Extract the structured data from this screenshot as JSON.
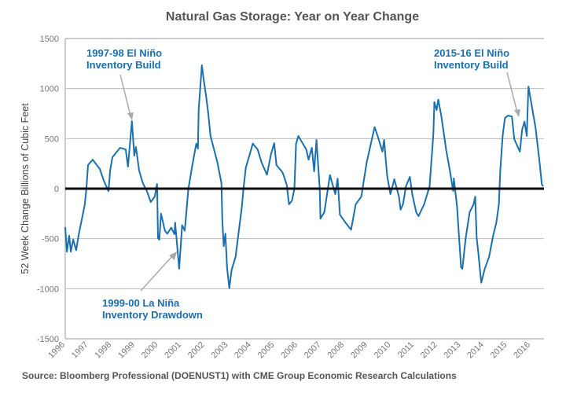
{
  "chart_data": {
    "type": "line",
    "title": "Natural Gas Storage: Year on Year Change",
    "xlabel": "",
    "ylabel": "52 Week Change Billions of Cubic Feet",
    "ylim": [
      -1500,
      1500
    ],
    "xlim": [
      1996,
      2016.6
    ],
    "yticks": [
      -1500,
      -1000,
      -500,
      0,
      500,
      1000,
      1500
    ],
    "xticks": [
      "1996",
      "1997",
      "1998",
      "1999",
      "2000",
      "2001",
      "2002",
      "2003",
      "2004",
      "2005",
      "2006",
      "2007",
      "2008",
      "2009",
      "2010",
      "2011",
      "2012",
      "2013",
      "2014",
      "2015",
      "2016"
    ],
    "grid": true,
    "line_color": "#1a6faf",
    "annotations": [
      {
        "lines": [
          "1997-98 El Niño",
          "Inventory Build"
        ],
        "points_to": [
          1998.87,
          675
        ]
      },
      {
        "lines": [
          "2015-16 El Niño",
          "Inventory Build"
        ],
        "points_to": [
          2015.5,
          700
        ]
      },
      {
        "lines": [
          "1999-00 La Niña",
          "Inventory Drawdown"
        ],
        "points_to": [
          2000.8,
          -640
        ]
      }
    ],
    "source": "Source: Bloomberg Professional (DOENUST1) with CME Group Economic Research Calculations",
    "series": [
      {
        "name": "52 Week Change",
        "x": [
          1996.0,
          1996.07,
          1996.17,
          1996.24,
          1996.34,
          1996.47,
          1996.57,
          1996.84,
          1996.91,
          1996.98,
          1997.18,
          1997.49,
          1997.66,
          1997.86,
          1997.93,
          1998.03,
          1998.36,
          1998.6,
          1998.7,
          1998.87,
          1998.97,
          1999.04,
          1999.18,
          1999.34,
          1999.51,
          1999.68,
          1999.85,
          1999.95,
          1999.99,
          2000.05,
          2000.12,
          2000.29,
          2000.39,
          2000.56,
          2000.7,
          2000.73,
          2000.9,
          2001.03,
          2001.14,
          2001.24,
          2001.3,
          2001.47,
          2001.64,
          2001.71,
          2001.74,
          2001.88,
          2001.95,
          2002.05,
          2002.15,
          2002.25,
          2002.55,
          2002.72,
          2002.76,
          2002.82,
          2002.89,
          2002.96,
          2003.06,
          2003.16,
          2003.33,
          2003.5,
          2003.6,
          2003.67,
          2003.77,
          2004.07,
          2004.28,
          2004.45,
          2004.68,
          2004.85,
          2004.99,
          2005.09,
          2005.29,
          2005.36,
          2005.53,
          2005.63,
          2005.76,
          2005.86,
          2005.93,
          2006.03,
          2006.37,
          2006.47,
          2006.61,
          2006.71,
          2006.81,
          2006.95,
          2006.98,
          2007.15,
          2007.39,
          2007.62,
          2007.72,
          2007.82,
          2008.06,
          2008.3,
          2008.5,
          2008.74,
          2008.97,
          2009.31,
          2009.41,
          2009.65,
          2009.72,
          2009.85,
          2009.99,
          2010.16,
          2010.36,
          2010.43,
          2010.53,
          2010.66,
          2010.83,
          2010.93,
          2011.1,
          2011.2,
          2011.44,
          2011.68,
          2011.84,
          2011.88,
          2011.98,
          2012.05,
          2012.18,
          2012.39,
          2012.55,
          2012.69,
          2012.72,
          2012.86,
          2013.03,
          2013.09,
          2013.23,
          2013.4,
          2013.57,
          2013.64,
          2013.7,
          2013.77,
          2013.9,
          2014.04,
          2014.24,
          2014.41,
          2014.55,
          2014.66,
          2014.72,
          2014.82,
          2014.92,
          2015.05,
          2015.22,
          2015.32,
          2015.56,
          2015.66,
          2015.76,
          2015.86,
          2015.93,
          2016.03,
          2016.24,
          2016.41,
          2016.51,
          2016.57
        ],
        "y": [
          -385,
          -630,
          -470,
          -630,
          -510,
          -615,
          -470,
          -160,
          0,
          236,
          290,
          196,
          78,
          -25,
          180,
          314,
          408,
          392,
          220,
          675,
          330,
          416,
          180,
          55,
          -24,
          -134,
          -80,
          47,
          -495,
          -510,
          -250,
          -420,
          -450,
          -390,
          -455,
          -340,
          -800,
          -365,
          -420,
          -157,
          0,
          236,
          450,
          400,
          785,
          1233,
          1100,
          940,
          760,
          525,
          260,
          55,
          -315,
          -575,
          -450,
          -785,
          -995,
          -810,
          -680,
          -365,
          -180,
          0,
          210,
          450,
          390,
          260,
          140,
          340,
          455,
          235,
          180,
          157,
          40,
          -157,
          -118,
          0,
          447,
          526,
          392,
          290,
          408,
          173,
          487,
          0,
          -300,
          -235,
          135,
          -55,
          100,
          -260,
          -340,
          -410,
          -157,
          -80,
          260,
          615,
          550,
          370,
          487,
          133,
          -55,
          94,
          -80,
          -210,
          -157,
          24,
          118,
          -55,
          -235,
          -275,
          -157,
          24,
          550,
          865,
          785,
          890,
          730,
          390,
          180,
          -24,
          102,
          -180,
          -785,
          -800,
          -495,
          -235,
          -157,
          -80,
          -485,
          -630,
          -940,
          -810,
          -680,
          -470,
          -340,
          -157,
          180,
          525,
          705,
          730,
          720,
          495,
          370,
          590,
          670,
          526,
          1020,
          890,
          600,
          260,
          40,
          25
        ]
      }
    ]
  }
}
